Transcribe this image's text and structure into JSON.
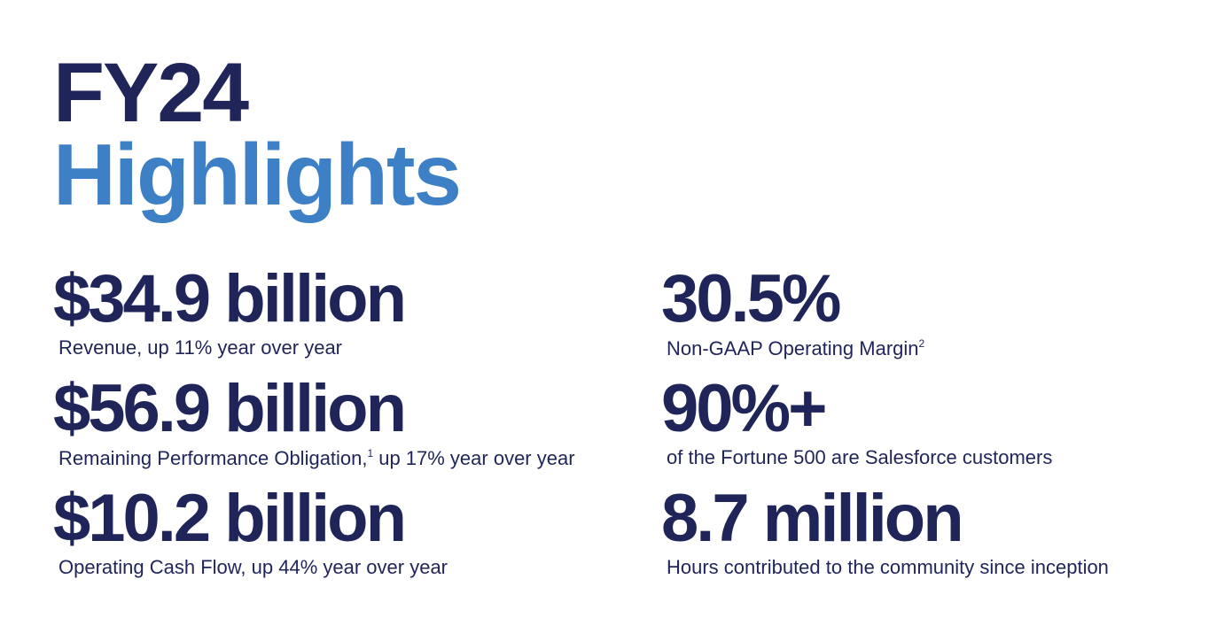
{
  "title": {
    "line1": "FY24",
    "line2": "Highlights"
  },
  "metrics": [
    {
      "value": "$34.9 billion",
      "description": "Revenue, up 11% year over year"
    },
    {
      "value": "$56.9 billion",
      "description": "Remaining Performance Obligation,",
      "footnote": "1",
      "description_rest": "up 17% year over year"
    },
    {
      "value": "$10.2 billion",
      "description": "Operating Cash Flow, up 44% year over year"
    },
    {
      "value": "30.5%",
      "description": "Non-GAAP Operating Margin",
      "footnote": "2"
    },
    {
      "value": "90%+",
      "description": "of the Fortune 500 are Salesforce customers"
    },
    {
      "value": "8.7 million",
      "description": "Hours contributed to the community since inception"
    }
  ]
}
